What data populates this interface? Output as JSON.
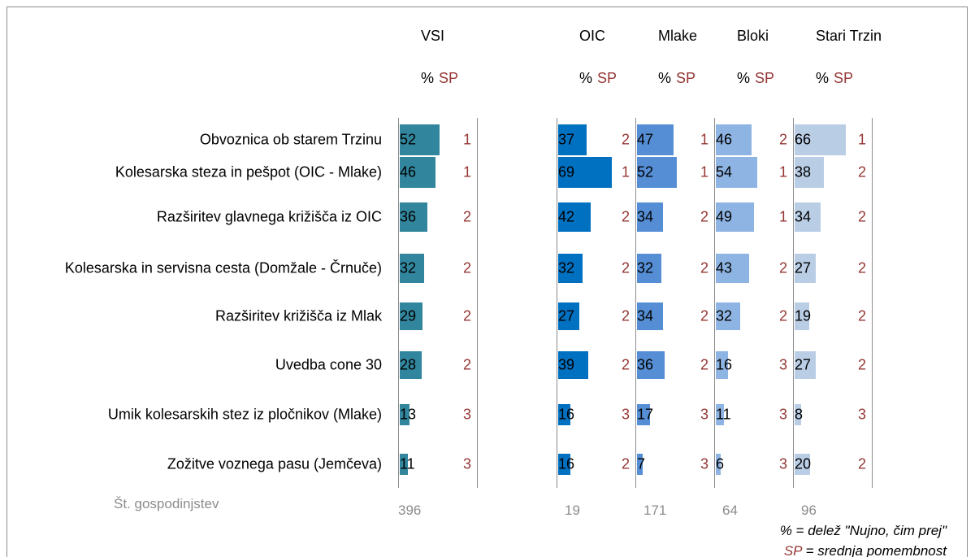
{
  "chart_data": {
    "type": "bar",
    "orientation": "horizontal",
    "categories": [
      "Obvoznica ob starem Trzinu",
      "Kolesarska steza in pešpot (OIC - Mlake)",
      "Razširitev glavnega križišča iz OIC",
      "Kolesarska in servisna cesta (Domžale - Črnuče)",
      "Razširitev križišča iz Mlak",
      "Uvedba cone 30",
      "Umik kolesarskih stez iz pločnikov (Mlake)",
      "Zožitve voznega pasu (Jemčeva)"
    ],
    "pct_label": "%",
    "sp_label": "SP",
    "n_label": "Št. gospodinjstev",
    "xlim": [
      0,
      100
    ],
    "series": [
      {
        "name": "VSI",
        "color": "#31859c",
        "values": [
          52,
          46,
          36,
          32,
          29,
          28,
          13,
          11
        ],
        "sp": [
          1,
          1,
          2,
          2,
          2,
          2,
          3,
          3
        ],
        "n": 396
      },
      {
        "name": "OIC",
        "color": "#0070c0",
        "values": [
          37,
          69,
          42,
          32,
          27,
          39,
          16,
          16
        ],
        "sp": [
          2,
          1,
          2,
          2,
          2,
          2,
          3,
          2
        ],
        "n": 19
      },
      {
        "name": "Mlake",
        "color": "#558ed5",
        "values": [
          47,
          52,
          34,
          32,
          34,
          36,
          17,
          7
        ],
        "sp": [
          1,
          1,
          2,
          2,
          2,
          2,
          3,
          3
        ],
        "n": 171
      },
      {
        "name": "Bloki",
        "color": "#8eb4e3",
        "values": [
          46,
          54,
          49,
          43,
          32,
          16,
          11,
          6
        ],
        "sp": [
          2,
          1,
          1,
          2,
          2,
          3,
          3,
          3
        ],
        "n": 64
      },
      {
        "name": "Stari Trzin",
        "color": "#b9cde5",
        "values": [
          66,
          38,
          34,
          27,
          19,
          27,
          8,
          20
        ],
        "sp": [
          1,
          2,
          2,
          2,
          2,
          2,
          3,
          2
        ],
        "n": 96
      }
    ],
    "notes": [
      "% = delež  \"Nujno, čim prej\"",
      {
        "key": "SP",
        "text": " = srednja pomembnost"
      }
    ]
  }
}
